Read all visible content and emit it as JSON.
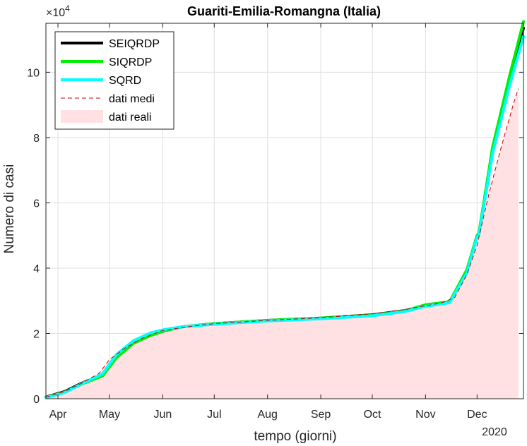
{
  "chart_data": {
    "type": "line",
    "title": "Guariti-Emilia-Romangna (Italia)",
    "xlabel": "tempo (giorni)",
    "ylabel": "Numero di casi",
    "year_label": "2020",
    "exponent_label": "×10",
    "exponent_power": "4",
    "x_ticks": [
      "Apr",
      "May",
      "Jun",
      "Jul",
      "Aug",
      "Sep",
      "Oct",
      "Nov",
      "Dec"
    ],
    "x_tick_dates": [
      "2020-04-01",
      "2020-05-01",
      "2020-06-01",
      "2020-07-01",
      "2020-08-01",
      "2020-09-01",
      "2020-10-01",
      "2020-11-01",
      "2020-12-01"
    ],
    "xlim": [
      "2020-03-25",
      "2020-12-28"
    ],
    "y_ticks": [
      "0",
      "2",
      "4",
      "6",
      "8",
      "10"
    ],
    "y_tick_values": [
      0,
      20000,
      40000,
      60000,
      80000,
      100000
    ],
    "ylim": [
      0,
      115000
    ],
    "grid": true,
    "legend_position": "top-left",
    "series": [
      {
        "name": "SEIQRDP",
        "color": "#000000",
        "style": "solid",
        "x": [
          "2020-03-25",
          "2020-04-05",
          "2020-04-15",
          "2020-04-27",
          "2020-05-05",
          "2020-05-15",
          "2020-05-25",
          "2020-06-02",
          "2020-06-12",
          "2020-07-01",
          "2020-08-01",
          "2020-09-01",
          "2020-10-01",
          "2020-10-20",
          "2020-11-01",
          "2020-11-10",
          "2020-11-15",
          "2020-11-25",
          "2020-12-01",
          "2020-12-02",
          "2020-12-10",
          "2020-12-20",
          "2020-12-28"
        ],
        "values": [
          500,
          2200,
          4800,
          7300,
          13000,
          17200,
          19500,
          20800,
          22000,
          23000,
          24000,
          24700,
          25700,
          27000,
          28500,
          29200,
          29600,
          39000,
          50000,
          50500,
          76000,
          98000,
          113500
        ]
      },
      {
        "name": "SIQRDP",
        "color": "#00ee00",
        "style": "solid",
        "x": [
          "2020-03-25",
          "2020-04-05",
          "2020-04-15",
          "2020-04-27",
          "2020-05-05",
          "2020-05-15",
          "2020-05-25",
          "2020-06-02",
          "2020-06-12",
          "2020-07-01",
          "2020-08-01",
          "2020-09-01",
          "2020-10-01",
          "2020-10-20",
          "2020-11-01",
          "2020-11-10",
          "2020-11-15",
          "2020-11-25",
          "2020-12-01",
          "2020-12-02",
          "2020-12-10",
          "2020-12-20",
          "2020-12-28"
        ],
        "values": [
          400,
          2000,
          4500,
          7000,
          12500,
          17000,
          19400,
          20800,
          22000,
          23000,
          24000,
          24700,
          25600,
          26900,
          28800,
          29400,
          29700,
          39500,
          50000,
          50500,
          77000,
          99000,
          115500
        ]
      },
      {
        "name": "SQRD",
        "color": "#00ffff",
        "style": "solid",
        "x": [
          "2020-03-25",
          "2020-04-05",
          "2020-04-15",
          "2020-04-27",
          "2020-05-05",
          "2020-05-15",
          "2020-05-25",
          "2020-06-02",
          "2020-06-12",
          "2020-07-01",
          "2020-08-01",
          "2020-09-01",
          "2020-10-01",
          "2020-10-20",
          "2020-11-01",
          "2020-11-10",
          "2020-11-15",
          "2020-11-25",
          "2020-12-01",
          "2020-12-02",
          "2020-12-10",
          "2020-12-20",
          "2020-12-28"
        ],
        "values": [
          300,
          1900,
          4600,
          7600,
          13500,
          17800,
          20200,
          21200,
          22000,
          22800,
          23800,
          24500,
          25400,
          26700,
          28300,
          29000,
          29400,
          38500,
          49500,
          50000,
          75000,
          96000,
          111000
        ]
      },
      {
        "name": "dati medi",
        "color": "#cc0000",
        "style": "dashed",
        "x": [
          "2020-03-25",
          "2020-04-05",
          "2020-04-15",
          "2020-04-25",
          "2020-05-01",
          "2020-05-10",
          "2020-05-20",
          "2020-06-01",
          "2020-06-15",
          "2020-07-01",
          "2020-08-01",
          "2020-09-01",
          "2020-10-01",
          "2020-10-20",
          "2020-11-01",
          "2020-11-10",
          "2020-11-18",
          "2020-11-25",
          "2020-12-01",
          "2020-12-08",
          "2020-12-15",
          "2020-12-22",
          "2020-12-25"
        ],
        "values": [
          500,
          2200,
          4800,
          7800,
          12000,
          15500,
          18500,
          20900,
          22000,
          23000,
          24000,
          24800,
          26000,
          27300,
          28500,
          29300,
          31000,
          38000,
          47000,
          63000,
          77000,
          90000,
          95000
        ]
      },
      {
        "name": "dati reali",
        "color": "#ffe0e3",
        "style": "area",
        "x": [
          "2020-03-25",
          "2020-04-05",
          "2020-04-15",
          "2020-04-25",
          "2020-05-01",
          "2020-05-10",
          "2020-05-20",
          "2020-06-01",
          "2020-06-15",
          "2020-07-01",
          "2020-08-01",
          "2020-09-01",
          "2020-10-01",
          "2020-10-20",
          "2020-11-01",
          "2020-11-10",
          "2020-11-18",
          "2020-11-25",
          "2020-12-01",
          "2020-12-08",
          "2020-12-15",
          "2020-12-22",
          "2020-12-25"
        ],
        "values": [
          500,
          2200,
          4800,
          7800,
          12000,
          15500,
          18500,
          20900,
          22000,
          23000,
          24000,
          24800,
          26000,
          27300,
          28500,
          29300,
          31000,
          38000,
          47000,
          63000,
          77000,
          90000,
          95000
        ]
      }
    ]
  }
}
